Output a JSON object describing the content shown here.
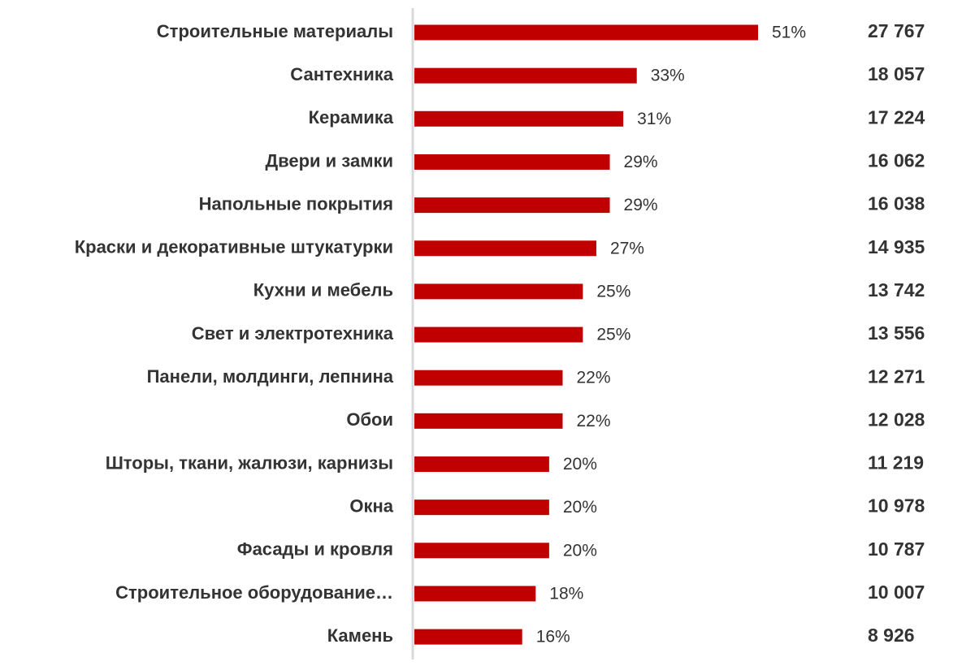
{
  "chart_data": {
    "type": "bar",
    "orientation": "horizontal",
    "color": "#c00000",
    "categories": [
      "Строительные материалы",
      "Сантехника",
      "Керамика",
      "Двери и замки",
      "Напольные покрытия",
      "Краски и декоративные штукатурки",
      "Кухни и мебель",
      "Свет и электротехника",
      "Панели, молдинги, лепнина",
      "Обои",
      "Шторы, ткани, жалюзи, карнизы",
      "Окна",
      "Фасады и кровля",
      "Строительное оборудование…",
      "Камень"
    ],
    "values": [
      51,
      33,
      31,
      29,
      29,
      27,
      25,
      25,
      22,
      22,
      20,
      20,
      20,
      18,
      16
    ],
    "value_labels": [
      "51%",
      "33%",
      "31%",
      "29%",
      "29%",
      "27%",
      "25%",
      "25%",
      "22%",
      "22%",
      "20%",
      "20%",
      "20%",
      "18%",
      "16%"
    ],
    "totals": [
      "27 767",
      "18 057",
      "17 224",
      "16 062",
      "16 038",
      "14 935",
      "13 742",
      "13 556",
      "12 271",
      "12 028",
      "11 219",
      "10 978",
      "10 787",
      "10 007",
      "8 926"
    ]
  }
}
